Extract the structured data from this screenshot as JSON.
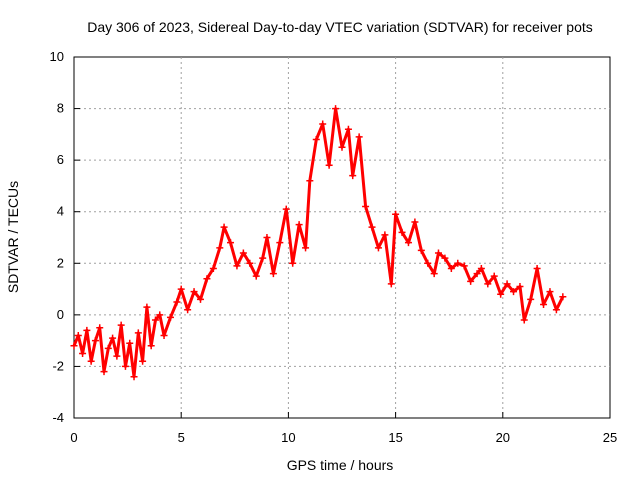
{
  "chart_data": {
    "type": "scatter",
    "title": "Day 306 of 2023, Sidereal Day-to-day VTEC variation (SDTVAR) for receiver pots",
    "xlabel": "GPS time / hours",
    "ylabel": "SDTVAR / TECUs",
    "xlim": [
      0,
      25
    ],
    "ylim": [
      -4,
      10
    ],
    "xticks": [
      "0",
      "5",
      "10",
      "15",
      "20",
      "25"
    ],
    "yticks": [
      "-4",
      "-2",
      "0",
      "2",
      "4",
      "6",
      "8",
      "10"
    ],
    "grid": true,
    "marker": "+",
    "color": "#ff0000",
    "series": [
      {
        "name": "SDTVAR",
        "x": [
          0.0,
          0.2,
          0.4,
          0.6,
          0.8,
          1.0,
          1.2,
          1.4,
          1.6,
          1.8,
          2.0,
          2.2,
          2.4,
          2.6,
          2.8,
          3.0,
          3.2,
          3.4,
          3.6,
          3.8,
          4.0,
          4.2,
          4.5,
          4.8,
          5.0,
          5.3,
          5.6,
          5.9,
          6.2,
          6.5,
          6.8,
          7.0,
          7.3,
          7.6,
          7.9,
          8.2,
          8.5,
          8.8,
          9.0,
          9.3,
          9.6,
          9.9,
          10.2,
          10.5,
          10.8,
          11.0,
          11.3,
          11.6,
          11.9,
          12.2,
          12.5,
          12.8,
          13.0,
          13.3,
          13.6,
          13.9,
          14.2,
          14.5,
          14.8,
          15.0,
          15.3,
          15.6,
          15.9,
          16.2,
          16.5,
          16.8,
          17.0,
          17.3,
          17.6,
          17.9,
          18.2,
          18.5,
          18.8,
          19.0,
          19.3,
          19.6,
          19.9,
          20.2,
          20.5,
          20.8,
          21.0,
          21.3,
          21.6,
          21.9,
          22.2,
          22.5,
          22.8
        ],
        "y": [
          -1.2,
          -0.8,
          -1.5,
          -0.6,
          -1.8,
          -1.0,
          -0.5,
          -2.2,
          -1.3,
          -0.9,
          -1.6,
          -0.4,
          -2.0,
          -1.1,
          -2.4,
          -0.7,
          -1.8,
          0.3,
          -1.2,
          -0.2,
          0.0,
          -0.8,
          -0.1,
          0.5,
          1.0,
          0.2,
          0.9,
          0.6,
          1.4,
          1.8,
          2.6,
          3.4,
          2.8,
          1.9,
          2.4,
          2.0,
          1.5,
          2.2,
          3.0,
          1.6,
          2.8,
          4.1,
          2.0,
          3.5,
          2.6,
          5.2,
          6.8,
          7.4,
          5.8,
          8.0,
          6.5,
          7.2,
          5.4,
          6.9,
          4.2,
          3.4,
          2.6,
          3.1,
          1.2,
          3.9,
          3.2,
          2.8,
          3.6,
          2.5,
          2.0,
          1.6,
          2.4,
          2.2,
          1.8,
          2.0,
          1.9,
          1.3,
          1.6,
          1.8,
          1.2,
          1.5,
          0.8,
          1.2,
          0.9,
          1.1,
          -0.2,
          0.6,
          1.8,
          0.4,
          0.9,
          0.2,
          0.7
        ]
      }
    ]
  }
}
